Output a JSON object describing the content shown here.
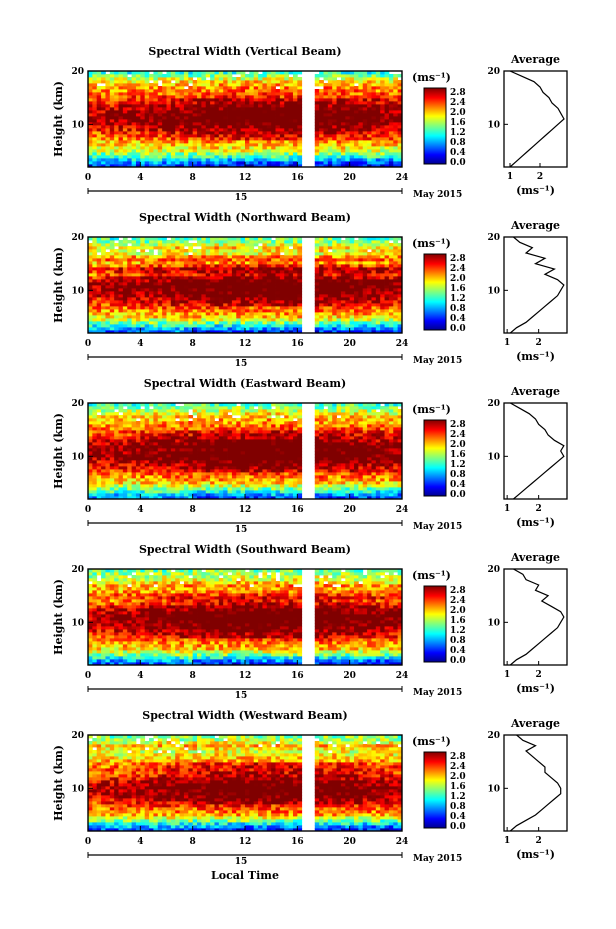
{
  "figure": {
    "month_label": "May 2015",
    "day_label": "15",
    "xlabel": "Local Time",
    "ylabel": "Height (km)",
    "cbar_unit": "(ms⁻¹)",
    "avg_title": "Average",
    "avg_unit": "(ms⁻¹)"
  },
  "chart_data": [
    {
      "type": "heatmap",
      "title": "Spectral Width (Vertical Beam)",
      "xlim": [
        0,
        24
      ],
      "xticks": [
        0,
        4,
        8,
        12,
        16,
        20,
        24
      ],
      "ylim": [
        2,
        20
      ],
      "yticks": [
        10,
        20
      ],
      "data_gap": [
        16.3,
        17.2
      ],
      "colorbar": {
        "min": 0.0,
        "max": 2.8,
        "ticks": [
          "0.0",
          "0.4",
          "0.8",
          "1.2",
          "1.6",
          "2.0",
          "2.4",
          "2.8"
        ]
      },
      "profile_heights": [
        2,
        3,
        4,
        5,
        6,
        7,
        8,
        9,
        10,
        11,
        12,
        13,
        14,
        15,
        16,
        17,
        18,
        19,
        20
      ],
      "profile_values": [
        1.0,
        1.2,
        1.4,
        1.6,
        1.8,
        2.0,
        2.2,
        2.4,
        2.6,
        2.8,
        2.7,
        2.6,
        2.4,
        2.3,
        2.1,
        2.0,
        1.8,
        1.4,
        1.0
      ],
      "profile_xlim": [
        0.8,
        2.9
      ],
      "profile_xticks": [
        1,
        2
      ]
    },
    {
      "type": "heatmap",
      "title": "Spectral Width (Northward Beam)",
      "xlim": [
        0,
        24
      ],
      "xticks": [
        0,
        4,
        8,
        12,
        16,
        20,
        24
      ],
      "ylim": [
        2,
        20
      ],
      "yticks": [
        10,
        20
      ],
      "data_gap": [
        16.3,
        17.2
      ],
      "colorbar": {
        "min": 0.0,
        "max": 2.8,
        "ticks": [
          "0.0",
          "0.4",
          "0.8",
          "1.2",
          "1.6",
          "2.0",
          "2.4",
          "2.8"
        ]
      },
      "profile_heights": [
        2,
        3,
        4,
        5,
        6,
        7,
        8,
        9,
        10,
        11,
        12,
        13,
        14,
        15,
        16,
        17,
        18,
        19,
        20
      ],
      "profile_values": [
        1.1,
        1.3,
        1.6,
        1.8,
        2.0,
        2.2,
        2.4,
        2.6,
        2.7,
        2.8,
        2.6,
        2.2,
        2.5,
        1.9,
        2.2,
        1.6,
        1.8,
        1.4,
        1.2
      ],
      "profile_xlim": [
        0.9,
        2.9
      ],
      "profile_xticks": [
        1,
        2
      ]
    },
    {
      "type": "heatmap",
      "title": "Spectral Width (Eastward Beam)",
      "xlim": [
        0,
        24
      ],
      "xticks": [
        0,
        4,
        8,
        12,
        16,
        20,
        24
      ],
      "ylim": [
        2,
        20
      ],
      "yticks": [
        10,
        20
      ],
      "data_gap": [
        16.3,
        17.2
      ],
      "colorbar": {
        "min": 0.0,
        "max": 2.8,
        "ticks": [
          "0.0",
          "0.4",
          "0.8",
          "1.2",
          "1.6",
          "2.0",
          "2.4",
          "2.8"
        ]
      },
      "profile_heights": [
        2,
        3,
        4,
        5,
        6,
        7,
        8,
        9,
        10,
        11,
        12,
        13,
        14,
        15,
        16,
        17,
        18,
        19,
        20
      ],
      "profile_values": [
        1.2,
        1.4,
        1.6,
        1.8,
        2.0,
        2.2,
        2.4,
        2.6,
        2.8,
        2.7,
        2.8,
        2.5,
        2.3,
        2.2,
        2.0,
        1.9,
        1.7,
        1.4,
        1.1
      ],
      "profile_xlim": [
        0.9,
        2.9
      ],
      "profile_xticks": [
        1,
        2
      ]
    },
    {
      "type": "heatmap",
      "title": "Spectral Width (Southward Beam)",
      "xlim": [
        0,
        24
      ],
      "xticks": [
        0,
        4,
        8,
        12,
        16,
        20,
        24
      ],
      "ylim": [
        2,
        20
      ],
      "yticks": [
        10,
        20
      ],
      "data_gap": [
        16.3,
        17.2
      ],
      "colorbar": {
        "min": 0.0,
        "max": 2.8,
        "ticks": [
          "0.0",
          "0.4",
          "0.8",
          "1.2",
          "1.6",
          "2.0",
          "2.4",
          "2.8"
        ]
      },
      "profile_heights": [
        2,
        3,
        4,
        5,
        6,
        7,
        8,
        9,
        10,
        11,
        12,
        13,
        14,
        15,
        16,
        17,
        18,
        19,
        20
      ],
      "profile_values": [
        1.1,
        1.3,
        1.6,
        1.8,
        2.0,
        2.2,
        2.4,
        2.6,
        2.7,
        2.8,
        2.7,
        2.4,
        2.1,
        2.3,
        1.9,
        2.0,
        1.6,
        1.5,
        1.2
      ],
      "profile_xlim": [
        0.9,
        2.9
      ],
      "profile_xticks": [
        1,
        2
      ]
    },
    {
      "type": "heatmap",
      "title": "Spectral Width (Westward Beam)",
      "xlim": [
        0,
        24
      ],
      "xticks": [
        0,
        4,
        8,
        12,
        16,
        20,
        24
      ],
      "ylim": [
        2,
        20
      ],
      "yticks": [
        10,
        20
      ],
      "data_gap": [
        16.3,
        17.2
      ],
      "colorbar": {
        "min": 0.0,
        "max": 2.8,
        "ticks": [
          "0.0",
          "0.4",
          "0.8",
          "1.2",
          "1.6",
          "2.0",
          "2.4",
          "2.8"
        ]
      },
      "profile_heights": [
        2,
        3,
        4,
        5,
        6,
        7,
        8,
        9,
        10,
        11,
        12,
        13,
        14,
        15,
        16,
        17,
        18,
        19,
        20
      ],
      "profile_values": [
        1.1,
        1.3,
        1.6,
        1.9,
        2.1,
        2.3,
        2.5,
        2.7,
        2.7,
        2.6,
        2.4,
        2.2,
        2.2,
        2.0,
        1.8,
        1.6,
        1.9,
        1.5,
        1.3
      ],
      "profile_xlim": [
        0.9,
        2.9
      ],
      "profile_xticks": [
        1,
        2
      ]
    }
  ]
}
